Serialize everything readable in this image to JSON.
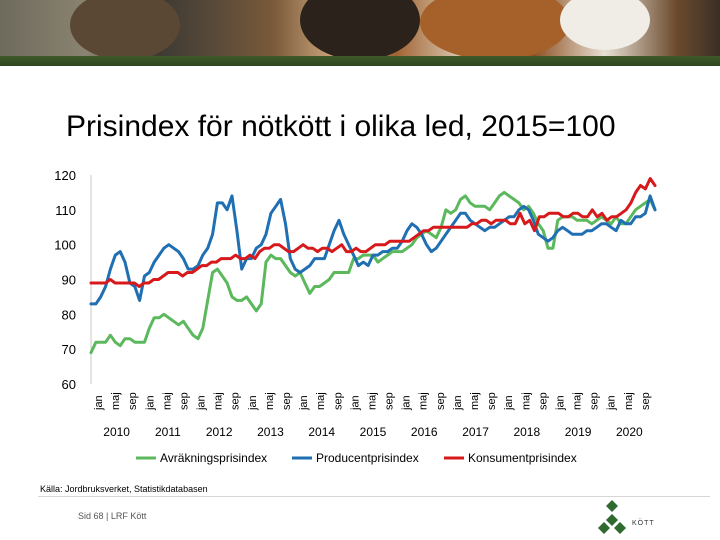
{
  "header": {
    "title": "Prisindex för nötkött i olika led, 2015=100"
  },
  "source": "Källa: Jordbruksverket, Statistikdatabasen",
  "footer": "Sid 68 | LRF Kött",
  "logo": {
    "text": "KÖTT"
  },
  "chart_data": {
    "type": "line",
    "title": "Prisindex för nötkött i olika led, 2015=100",
    "ylim": [
      60,
      120
    ],
    "yticks": [
      60,
      70,
      80,
      90,
      100,
      110,
      120
    ],
    "month_labels": [
      "jan",
      "maj",
      "sep"
    ],
    "years": [
      "2010",
      "2011",
      "2012",
      "2013",
      "2014",
      "2015",
      "2016",
      "2017",
      "2018",
      "2019",
      "2020"
    ],
    "grid": false,
    "legend_position": "bottom",
    "colors": {
      "Avräkningsprisindex": "#5cb85c",
      "Producentprisindex": "#1f6fb2",
      "Konsumentprisindex": "#d7191c"
    },
    "series": [
      {
        "name": "Avräkningsprisindex",
        "values": [
          69,
          72,
          72,
          72,
          74,
          72,
          71,
          73,
          73,
          72,
          72,
          72,
          76,
          79,
          79,
          80,
          79,
          78,
          77,
          78,
          76,
          74,
          73,
          76,
          84,
          92,
          93,
          91,
          89,
          85,
          84,
          84,
          85,
          83,
          81,
          83,
          95,
          97,
          96,
          96,
          94,
          92,
          91,
          92,
          89,
          86,
          88,
          88,
          89,
          90,
          92,
          92,
          92,
          92,
          96,
          96,
          97,
          97,
          97,
          95,
          96,
          97,
          98,
          98,
          98,
          99,
          100,
          102,
          103,
          104,
          103,
          102,
          105,
          110,
          109,
          110,
          113,
          114,
          112,
          111,
          111,
          111,
          110,
          112,
          114,
          115,
          114,
          113,
          112,
          110,
          111,
          109,
          106,
          104,
          99,
          99,
          107,
          108,
          108,
          108,
          107,
          107,
          107,
          106,
          107,
          108,
          107,
          106,
          108,
          106,
          106,
          108,
          110,
          111,
          112,
          113,
          110
        ]
      },
      {
        "name": "Producentprisindex",
        "values": [
          83,
          83,
          85,
          88,
          93,
          97,
          98,
          95,
          89,
          88,
          84,
          91,
          92,
          95,
          97,
          99,
          100,
          99,
          98,
          96,
          93,
          93,
          94,
          97,
          99,
          103,
          112,
          112,
          110,
          114,
          104,
          93,
          96,
          96,
          99,
          100,
          103,
          109,
          111,
          113,
          106,
          96,
          93,
          92,
          93,
          94,
          96,
          96,
          96,
          100,
          104,
          107,
          103,
          100,
          97,
          94,
          95,
          94,
          97,
          97,
          98,
          98,
          99,
          99,
          101,
          104,
          106,
          105,
          103,
          100,
          98,
          99,
          101,
          103,
          105,
          107,
          109,
          109,
          107,
          106,
          105,
          104,
          105,
          105,
          106,
          107,
          108,
          108,
          110,
          111,
          110,
          107,
          103,
          102,
          101,
          102,
          104,
          105,
          104,
          103,
          103,
          103,
          104,
          104,
          105,
          106,
          106,
          105,
          104,
          107,
          106,
          106,
          108,
          108,
          109,
          114,
          110
        ]
      },
      {
        "name": "Konsumentprisindex",
        "values": [
          89,
          89,
          89,
          89,
          90,
          89,
          89,
          89,
          89,
          89,
          88,
          89,
          89,
          90,
          90,
          91,
          92,
          92,
          92,
          91,
          92,
          92,
          93,
          94,
          94,
          95,
          95,
          96,
          96,
          96,
          97,
          96,
          96,
          97,
          96,
          98,
          99,
          99,
          100,
          100,
          99,
          98,
          98,
          99,
          100,
          99,
          99,
          98,
          99,
          99,
          98,
          99,
          100,
          98,
          98,
          99,
          98,
          98,
          99,
          100,
          100,
          100,
          101,
          101,
          101,
          101,
          101,
          102,
          103,
          104,
          104,
          105,
          105,
          105,
          105,
          105,
          105,
          105,
          105,
          106,
          106,
          107,
          107,
          106,
          107,
          107,
          107,
          106,
          106,
          109,
          106,
          107,
          104,
          108,
          108,
          109,
          109,
          109,
          108,
          108,
          109,
          109,
          108,
          108,
          110,
          108,
          109,
          107,
          108,
          108,
          109,
          110,
          112,
          115,
          117,
          116,
          119,
          117
        ]
      }
    ]
  }
}
